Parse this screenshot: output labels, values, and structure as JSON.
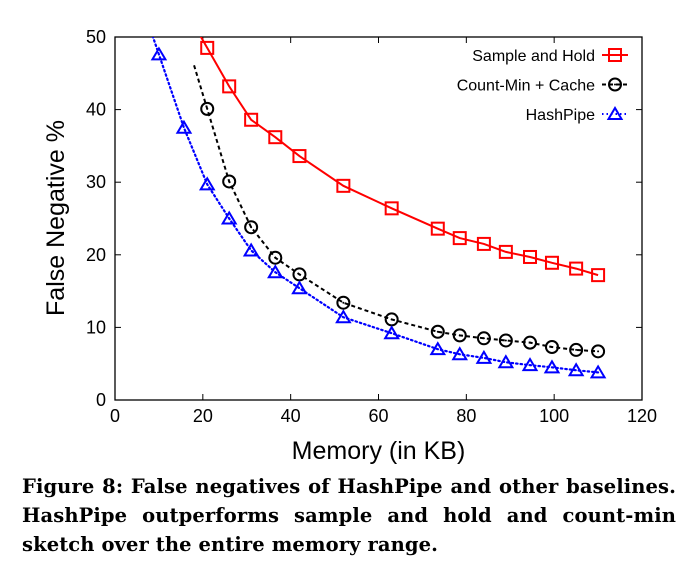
{
  "chart_data": {
    "type": "line",
    "xlabel": "Memory (in KB)",
    "ylabel": "False Negative %",
    "xlim": [
      0,
      120
    ],
    "ylim": [
      0,
      50
    ],
    "xticks": [
      0,
      20,
      40,
      60,
      80,
      100,
      120
    ],
    "yticks": [
      0,
      10,
      20,
      30,
      40,
      50
    ],
    "grid": false,
    "legend_position": "top-right",
    "series": [
      {
        "name": "Sample and Hold",
        "color": "#ff0000",
        "marker": "square",
        "line": "solid",
        "x": [
          21,
          26,
          31,
          36.5,
          42,
          52,
          63,
          73.5,
          78.5,
          84,
          89,
          94.5,
          99.5,
          105,
          110
        ],
        "y": [
          48.5,
          43.2,
          38.6,
          36.2,
          33.6,
          29.5,
          26.4,
          23.6,
          22.3,
          21.5,
          20.4,
          19.7,
          18.9,
          18.1,
          17.2
        ]
      },
      {
        "name": "Count-Min + Cache",
        "color": "#000000",
        "marker": "circle",
        "line": "dashed",
        "x": [
          21,
          26,
          31,
          36.5,
          42,
          52,
          63,
          73.5,
          78.5,
          84,
          89,
          94.5,
          99.5,
          105,
          110
        ],
        "y": [
          40.1,
          30.1,
          23.8,
          19.6,
          17.3,
          13.4,
          11.1,
          9.4,
          8.9,
          8.5,
          8.2,
          7.9,
          7.3,
          6.9,
          6.7
        ]
      },
      {
        "name": "HashPipe",
        "color": "#0000ff",
        "marker": "triangle",
        "line": "dotted",
        "x": [
          10,
          15.7,
          21,
          26,
          31,
          36.5,
          42,
          52,
          63,
          73.5,
          78.5,
          84,
          89,
          94.5,
          99.5,
          105,
          110
        ],
        "y": [
          47.6,
          37.5,
          29.7,
          25.0,
          20.6,
          17.6,
          15.4,
          11.4,
          9.2,
          7.0,
          6.3,
          5.8,
          5.2,
          4.8,
          4.5,
          4.1,
          3.8
        ]
      }
    ]
  },
  "caption": "Figure 8: False negatives of HashPipe and other baselines. HashPipe outperforms sample and hold and count-min sketch over the entire memory range."
}
